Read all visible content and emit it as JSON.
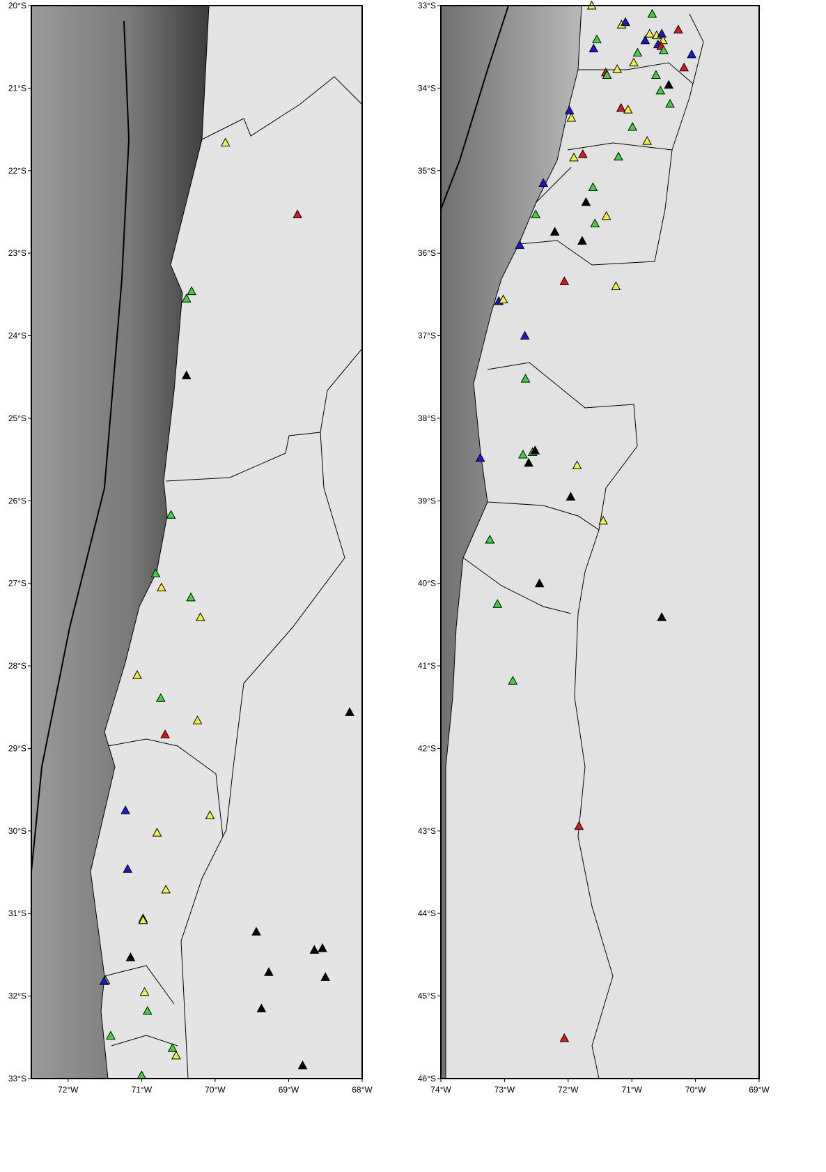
{
  "map": {
    "panels": [
      {
        "xlim": [
          -72.5,
          -68
        ],
        "ylim": [
          -33,
          -20
        ],
        "xticks": [
          {
            "value": -72,
            "label": "72°W"
          },
          {
            "value": -71,
            "label": "71°W"
          },
          {
            "value": -70,
            "label": "70°W"
          },
          {
            "value": -69,
            "label": "69°W"
          },
          {
            "value": -68,
            "label": "68°W"
          }
        ],
        "yticks": [
          {
            "value": -20,
            "label": "20°S"
          },
          {
            "value": -21,
            "label": "21°S"
          },
          {
            "value": -22,
            "label": "22°S"
          },
          {
            "value": -23,
            "label": "23°S"
          },
          {
            "value": -24,
            "label": "24°S"
          },
          {
            "value": -25,
            "label": "25°S"
          },
          {
            "value": -26,
            "label": "26°S"
          },
          {
            "value": -27,
            "label": "27°S"
          },
          {
            "value": -28,
            "label": "28°S"
          },
          {
            "value": -29,
            "label": "29°S"
          },
          {
            "value": -30,
            "label": "30°S"
          },
          {
            "value": -31,
            "label": "31°S"
          },
          {
            "value": -32,
            "label": "32°S"
          },
          {
            "value": -33,
            "label": "33°S"
          }
        ],
        "stations": [
          {
            "lon": -69.86,
            "lat": -21.66,
            "color": "#f2f23a"
          },
          {
            "lon": -68.88,
            "lat": -22.53,
            "color": "#e01515"
          },
          {
            "lon": -70.32,
            "lat": -23.46,
            "color": "#3cd63c"
          },
          {
            "lon": -70.39,
            "lat": -23.55,
            "color": "#3cd63c"
          },
          {
            "lon": -70.39,
            "lat": -24.48,
            "color": "#000000"
          },
          {
            "lon": -70.6,
            "lat": -26.17,
            "color": "#3cd63c"
          },
          {
            "lon": -70.81,
            "lat": -26.88,
            "color": "#3cd63c"
          },
          {
            "lon": -70.73,
            "lat": -27.05,
            "color": "#f2f23a"
          },
          {
            "lon": -70.33,
            "lat": -27.17,
            "color": "#3cd63c"
          },
          {
            "lon": -70.2,
            "lat": -27.41,
            "color": "#f2f23a"
          },
          {
            "lon": -71.06,
            "lat": -28.11,
            "color": "#f2f23a"
          },
          {
            "lon": -70.74,
            "lat": -28.39,
            "color": "#3cd63c"
          },
          {
            "lon": -70.24,
            "lat": -28.66,
            "color": "#f2f23a"
          },
          {
            "lon": -70.68,
            "lat": -28.83,
            "color": "#e01515"
          },
          {
            "lon": -68.17,
            "lat": -28.56,
            "color": "#000000"
          },
          {
            "lon": -71.22,
            "lat": -29.75,
            "color": "#1a1acc"
          },
          {
            "lon": -70.07,
            "lat": -29.81,
            "color": "#f2f23a"
          },
          {
            "lon": -70.79,
            "lat": -30.02,
            "color": "#f2f23a"
          },
          {
            "lon": -71.19,
            "lat": -30.46,
            "color": "#1a1acc"
          },
          {
            "lon": -70.67,
            "lat": -30.71,
            "color": "#f2f23a"
          },
          {
            "lon": -70.98,
            "lat": -31.06,
            "color": "#3cd63c"
          },
          {
            "lon": -70.98,
            "lat": -31.08,
            "color": "#f2f23a"
          },
          {
            "lon": -69.44,
            "lat": -31.22,
            "color": "#000000"
          },
          {
            "lon": -71.15,
            "lat": -31.53,
            "color": "#000000"
          },
          {
            "lon": -68.65,
            "lat": -31.44,
            "color": "#000000"
          },
          {
            "lon": -68.54,
            "lat": -31.42,
            "color": "#000000"
          },
          {
            "lon": -69.27,
            "lat": -31.71,
            "color": "#000000"
          },
          {
            "lon": -68.5,
            "lat": -31.77,
            "color": "#000000"
          },
          {
            "lon": -71.49,
            "lat": -31.81,
            "color": "#3cd63c"
          },
          {
            "lon": -71.51,
            "lat": -31.82,
            "color": "#1a1acc"
          },
          {
            "lon": -70.96,
            "lat": -31.95,
            "color": "#f2f23a"
          },
          {
            "lon": -70.92,
            "lat": -32.18,
            "color": "#3cd63c"
          },
          {
            "lon": -69.37,
            "lat": -32.15,
            "color": "#000000"
          },
          {
            "lon": -71.42,
            "lat": -32.48,
            "color": "#3cd63c"
          },
          {
            "lon": -70.58,
            "lat": -32.63,
            "color": "#3cd63c"
          },
          {
            "lon": -70.53,
            "lat": -32.72,
            "color": "#f2f23a"
          },
          {
            "lon": -68.81,
            "lat": -32.84,
            "color": "#000000"
          },
          {
            "lon": -71.0,
            "lat": -32.96,
            "color": "#3cd63c"
          }
        ]
      },
      {
        "xlim": [
          -74,
          -69
        ],
        "ylim": [
          -46,
          -33
        ],
        "xticks": [
          {
            "value": -74,
            "label": "74°W"
          },
          {
            "value": -73,
            "label": "73°W"
          },
          {
            "value": -72,
            "label": "72°W"
          },
          {
            "value": -71,
            "label": "71°W"
          },
          {
            "value": -70,
            "label": "70°W"
          },
          {
            "value": -69,
            "label": "69°W"
          }
        ],
        "yticks": [
          {
            "value": -33,
            "label": "33°S"
          },
          {
            "value": -34,
            "label": "34°S"
          },
          {
            "value": -35,
            "label": "35°S"
          },
          {
            "value": -36,
            "label": "36°S"
          },
          {
            "value": -37,
            "label": "37°S"
          },
          {
            "value": -38,
            "label": "38°S"
          },
          {
            "value": -39,
            "label": "39°S"
          },
          {
            "value": -40,
            "label": "40°S"
          },
          {
            "value": -41,
            "label": "41°S"
          },
          {
            "value": -42,
            "label": "42°S"
          },
          {
            "value": -43,
            "label": "43°S"
          },
          {
            "value": -44,
            "label": "44°S"
          },
          {
            "value": -45,
            "label": "45°S"
          },
          {
            "value": -46,
            "label": "46°S"
          }
        ],
        "stations": [
          {
            "lon": -71.63,
            "lat": -33.0,
            "color": "#f2f23a"
          },
          {
            "lon": -71.16,
            "lat": -33.23,
            "color": "#f2f23a"
          },
          {
            "lon": -70.68,
            "lat": -33.1,
            "color": "#3cd63c"
          },
          {
            "lon": -71.55,
            "lat": -33.41,
            "color": "#3cd63c"
          },
          {
            "lon": -71.6,
            "lat": -33.52,
            "color": "#1a1acc"
          },
          {
            "lon": -71.1,
            "lat": -33.2,
            "color": "#1a1acc"
          },
          {
            "lon": -70.79,
            "lat": -33.42,
            "color": "#1a1acc"
          },
          {
            "lon": -70.72,
            "lat": -33.34,
            "color": "#f2f23a"
          },
          {
            "lon": -70.61,
            "lat": -33.36,
            "color": "#f2f23a"
          },
          {
            "lon": -70.53,
            "lat": -33.34,
            "color": "#1a1acc"
          },
          {
            "lon": -70.51,
            "lat": -33.42,
            "color": "#f2f23a"
          },
          {
            "lon": -70.59,
            "lat": -33.47,
            "color": "#1a1acc"
          },
          {
            "lon": -70.54,
            "lat": -33.49,
            "color": "#e01515"
          },
          {
            "lon": -70.91,
            "lat": -33.57,
            "color": "#3cd63c"
          },
          {
            "lon": -70.5,
            "lat": -33.54,
            "color": "#3cd63c"
          },
          {
            "lon": -70.27,
            "lat": -33.29,
            "color": "#e01515"
          },
          {
            "lon": -70.06,
            "lat": -33.59,
            "color": "#1a1acc"
          },
          {
            "lon": -71.41,
            "lat": -33.81,
            "color": "#e01515"
          },
          {
            "lon": -71.39,
            "lat": -33.84,
            "color": "#3cd63c"
          },
          {
            "lon": -71.23,
            "lat": -33.77,
            "color": "#f2f23a"
          },
          {
            "lon": -70.97,
            "lat": -33.69,
            "color": "#f2f23a"
          },
          {
            "lon": -70.62,
            "lat": -33.84,
            "color": "#3cd63c"
          },
          {
            "lon": -70.18,
            "lat": -33.75,
            "color": "#e01515"
          },
          {
            "lon": -70.42,
            "lat": -33.96,
            "color": "#000000"
          },
          {
            "lon": -70.55,
            "lat": -34.03,
            "color": "#3cd63c"
          },
          {
            "lon": -70.4,
            "lat": -34.19,
            "color": "#3cd63c"
          },
          {
            "lon": -71.98,
            "lat": -34.27,
            "color": "#1a1acc"
          },
          {
            "lon": -71.95,
            "lat": -34.36,
            "color": "#f2f23a"
          },
          {
            "lon": -71.17,
            "lat": -34.24,
            "color": "#e01515"
          },
          {
            "lon": -71.06,
            "lat": -34.26,
            "color": "#f2f23a"
          },
          {
            "lon": -70.99,
            "lat": -34.47,
            "color": "#3cd63c"
          },
          {
            "lon": -70.76,
            "lat": -34.64,
            "color": "#f2f23a"
          },
          {
            "lon": -71.91,
            "lat": -34.84,
            "color": "#f2f23a"
          },
          {
            "lon": -71.77,
            "lat": -34.8,
            "color": "#e01515"
          },
          {
            "lon": -71.21,
            "lat": -34.83,
            "color": "#3cd63c"
          },
          {
            "lon": -72.39,
            "lat": -35.15,
            "color": "#1a1acc"
          },
          {
            "lon": -71.61,
            "lat": -35.2,
            "color": "#3cd63c"
          },
          {
            "lon": -71.72,
            "lat": -35.38,
            "color": "#000000"
          },
          {
            "lon": -72.51,
            "lat": -35.53,
            "color": "#3cd63c"
          },
          {
            "lon": -71.4,
            "lat": -35.55,
            "color": "#f2f23a"
          },
          {
            "lon": -71.58,
            "lat": -35.64,
            "color": "#3cd63c"
          },
          {
            "lon": -72.21,
            "lat": -35.74,
            "color": "#000000"
          },
          {
            "lon": -71.78,
            "lat": -35.85,
            "color": "#000000"
          },
          {
            "lon": -72.76,
            "lat": -35.9,
            "color": "#1a1acc"
          },
          {
            "lon": -72.06,
            "lat": -36.34,
            "color": "#e01515"
          },
          {
            "lon": -71.25,
            "lat": -36.4,
            "color": "#f2f23a"
          },
          {
            "lon": -73.09,
            "lat": -36.58,
            "color": "#1a1acc"
          },
          {
            "lon": -73.02,
            "lat": -36.56,
            "color": "#f2f23a"
          },
          {
            "lon": -72.68,
            "lat": -37.0,
            "color": "#1a1acc"
          },
          {
            "lon": -72.67,
            "lat": -37.52,
            "color": "#3cd63c"
          },
          {
            "lon": -73.38,
            "lat": -38.48,
            "color": "#1a1acc"
          },
          {
            "lon": -72.71,
            "lat": -38.44,
            "color": "#3cd63c"
          },
          {
            "lon": -72.56,
            "lat": -38.41,
            "color": "#3cd63c"
          },
          {
            "lon": -72.52,
            "lat": -38.39,
            "color": "#000000"
          },
          {
            "lon": -72.62,
            "lat": -38.54,
            "color": "#000000"
          },
          {
            "lon": -71.86,
            "lat": -38.57,
            "color": "#f2f23a"
          },
          {
            "lon": -71.96,
            "lat": -38.95,
            "color": "#000000"
          },
          {
            "lon": -71.45,
            "lat": -39.24,
            "color": "#f2f23a"
          },
          {
            "lon": -73.23,
            "lat": -39.47,
            "color": "#3cd63c"
          },
          {
            "lon": -72.45,
            "lat": -40.0,
            "color": "#000000"
          },
          {
            "lon": -73.11,
            "lat": -40.25,
            "color": "#3cd63c"
          },
          {
            "lon": -70.53,
            "lat": -40.41,
            "color": "#000000"
          },
          {
            "lon": -72.87,
            "lat": -41.18,
            "color": "#3cd63c"
          },
          {
            "lon": -71.83,
            "lat": -42.94,
            "color": "#e01515"
          },
          {
            "lon": -72.06,
            "lat": -45.51,
            "color": "#e01515"
          }
        ]
      }
    ]
  }
}
